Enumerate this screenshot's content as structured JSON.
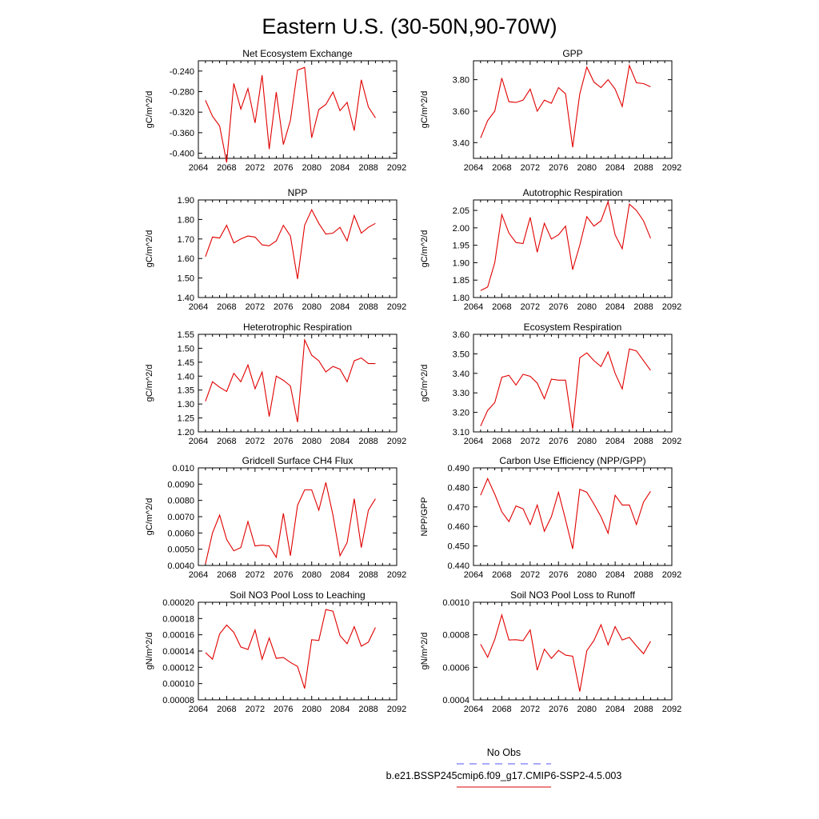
{
  "figure": {
    "title": "Eastern U.S. (30-50N,90-70W)"
  },
  "legend": {
    "entries": [
      {
        "label": "No Obs",
        "color": "#5555ff",
        "dashed": true
      },
      {
        "label": "b.e21.BSSP245cmip6.f09_g17.CMIP6-SSP2-4.5.003",
        "color": "#e00000",
        "dashed": false
      }
    ]
  },
  "chart_data": [
    {
      "type": "line",
      "title": "Net Ecosystem Exchange",
      "ylabel": "gC/m^2/d",
      "xlim": [
        2064,
        2092
      ],
      "xticks": [
        "2064",
        "2068",
        "2072",
        "2076",
        "2080",
        "2084",
        "2088",
        "2092"
      ],
      "ylim": [
        -0.41,
        -0.22
      ],
      "yticks": [
        "-0.240",
        "-0.280",
        "-0.320",
        "-0.360",
        "-0.400"
      ],
      "ytick_values": [
        -0.24,
        -0.28,
        -0.32,
        -0.36,
        -0.4
      ],
      "x": [
        2065,
        2066,
        2067,
        2068,
        2069,
        2070,
        2071,
        2072,
        2073,
        2074,
        2075,
        2076,
        2077,
        2078,
        2079,
        2080,
        2081,
        2082,
        2083,
        2084,
        2085,
        2086,
        2087,
        2088,
        2089
      ],
      "series": [
        {
          "color": "#e00000",
          "values": [
            -0.297,
            -0.328,
            -0.347,
            -0.418,
            -0.264,
            -0.314,
            -0.274,
            -0.341,
            -0.248,
            -0.392,
            -0.281,
            -0.383,
            -0.336,
            -0.238,
            -0.233,
            -0.37,
            -0.315,
            -0.305,
            -0.281,
            -0.317,
            -0.301,
            -0.356,
            -0.257,
            -0.31,
            -0.331
          ]
        }
      ]
    },
    {
      "type": "line",
      "title": "GPP",
      "ylabel": "gC/m^2/d",
      "xlim": [
        2064,
        2092
      ],
      "xticks": [
        "2064",
        "2068",
        "2072",
        "2076",
        "2080",
        "2084",
        "2088",
        "2092"
      ],
      "ylim": [
        3.3,
        3.92
      ],
      "yticks": [
        "3.80",
        "3.60",
        "3.40"
      ],
      "ytick_values": [
        3.8,
        3.6,
        3.4
      ],
      "x": [
        2065,
        2066,
        2067,
        2068,
        2069,
        2070,
        2071,
        2072,
        2073,
        2074,
        2075,
        2076,
        2077,
        2078,
        2079,
        2080,
        2081,
        2082,
        2083,
        2084,
        2085,
        2086,
        2087,
        2088,
        2089
      ],
      "series": [
        {
          "color": "#e00000",
          "values": [
            3.43,
            3.54,
            3.6,
            3.81,
            3.66,
            3.655,
            3.67,
            3.74,
            3.6,
            3.67,
            3.65,
            3.75,
            3.71,
            3.37,
            3.71,
            3.88,
            3.785,
            3.75,
            3.8,
            3.74,
            3.63,
            3.89,
            3.78,
            3.775,
            3.755
          ]
        }
      ]
    },
    {
      "type": "line",
      "title": "NPP",
      "ylabel": "gC/m^2/d",
      "xlim": [
        2064,
        2092
      ],
      "xticks": [
        "2064",
        "2068",
        "2072",
        "2076",
        "2080",
        "2084",
        "2088",
        "2092"
      ],
      "ylim": [
        1.4,
        1.9
      ],
      "yticks": [
        "1.90",
        "1.80",
        "1.70",
        "1.60",
        "1.50",
        "1.40"
      ],
      "ytick_values": [
        1.9,
        1.8,
        1.7,
        1.6,
        1.5,
        1.4
      ],
      "x": [
        2065,
        2066,
        2067,
        2068,
        2069,
        2070,
        2071,
        2072,
        2073,
        2074,
        2075,
        2076,
        2077,
        2078,
        2079,
        2080,
        2081,
        2082,
        2083,
        2084,
        2085,
        2086,
        2087,
        2088,
        2089
      ],
      "series": [
        {
          "color": "#e00000",
          "values": [
            1.61,
            1.71,
            1.705,
            1.77,
            1.68,
            1.7,
            1.715,
            1.71,
            1.67,
            1.665,
            1.69,
            1.77,
            1.715,
            1.495,
            1.77,
            1.85,
            1.78,
            1.725,
            1.73,
            1.76,
            1.69,
            1.82,
            1.73,
            1.76,
            1.78
          ]
        }
      ]
    },
    {
      "type": "line",
      "title": "Autotrophic Respiration",
      "ylabel": "gC/m^2/d",
      "xlim": [
        2064,
        2092
      ],
      "xticks": [
        "2064",
        "2068",
        "2072",
        "2076",
        "2080",
        "2084",
        "2088",
        "2092"
      ],
      "ylim": [
        1.8,
        2.08
      ],
      "yticks": [
        "2.05",
        "2.00",
        "1.95",
        "1.90",
        "1.85",
        "1.80"
      ],
      "ytick_values": [
        2.05,
        2.0,
        1.95,
        1.9,
        1.85,
        1.8
      ],
      "x": [
        2065,
        2066,
        2067,
        2068,
        2069,
        2070,
        2071,
        2072,
        2073,
        2074,
        2075,
        2076,
        2077,
        2078,
        2079,
        2080,
        2081,
        2082,
        2083,
        2084,
        2085,
        2086,
        2087,
        2088,
        2089
      ],
      "series": [
        {
          "color": "#e00000",
          "values": [
            1.82,
            1.83,
            1.9,
            2.038,
            1.985,
            1.958,
            1.955,
            2.03,
            1.93,
            2.013,
            1.968,
            1.98,
            2.005,
            1.88,
            1.95,
            2.032,
            2.005,
            2.02,
            2.075,
            1.98,
            1.94,
            2.068,
            2.05,
            2.02,
            1.97
          ]
        }
      ]
    },
    {
      "type": "line",
      "title": "Heterotrophic Respiration",
      "ylabel": "gC/m^2/d",
      "xlim": [
        2064,
        2092
      ],
      "xticks": [
        "2064",
        "2068",
        "2072",
        "2076",
        "2080",
        "2084",
        "2088",
        "2092"
      ],
      "ylim": [
        1.2,
        1.55
      ],
      "yticks": [
        "1.55",
        "1.50",
        "1.45",
        "1.40",
        "1.35",
        "1.30",
        "1.25",
        "1.20"
      ],
      "ytick_values": [
        1.55,
        1.5,
        1.45,
        1.4,
        1.35,
        1.3,
        1.25,
        1.2
      ],
      "x": [
        2065,
        2066,
        2067,
        2068,
        2069,
        2070,
        2071,
        2072,
        2073,
        2074,
        2075,
        2076,
        2077,
        2078,
        2079,
        2080,
        2081,
        2082,
        2083,
        2084,
        2085,
        2086,
        2087,
        2088,
        2089
      ],
      "series": [
        {
          "color": "#e00000",
          "values": [
            1.31,
            1.38,
            1.36,
            1.345,
            1.41,
            1.38,
            1.44,
            1.355,
            1.415,
            1.255,
            1.4,
            1.385,
            1.365,
            1.235,
            1.53,
            1.475,
            1.455,
            1.415,
            1.435,
            1.425,
            1.38,
            1.455,
            1.465,
            1.445,
            1.445
          ]
        }
      ]
    },
    {
      "type": "line",
      "title": "Ecosystem Respiration",
      "ylabel": "gC/m^2/d",
      "xlim": [
        2064,
        2092
      ],
      "xticks": [
        "2064",
        "2068",
        "2072",
        "2076",
        "2080",
        "2084",
        "2088",
        "2092"
      ],
      "ylim": [
        3.1,
        3.6
      ],
      "yticks": [
        "3.60",
        "3.50",
        "3.40",
        "3.30",
        "3.20",
        "3.10"
      ],
      "ytick_values": [
        3.6,
        3.5,
        3.4,
        3.3,
        3.2,
        3.1
      ],
      "x": [
        2065,
        2066,
        2067,
        2068,
        2069,
        2070,
        2071,
        2072,
        2073,
        2074,
        2075,
        2076,
        2077,
        2078,
        2079,
        2080,
        2081,
        2082,
        2083,
        2084,
        2085,
        2086,
        2087,
        2088,
        2089
      ],
      "series": [
        {
          "color": "#e00000",
          "values": [
            3.13,
            3.21,
            3.25,
            3.38,
            3.39,
            3.34,
            3.395,
            3.385,
            3.35,
            3.27,
            3.37,
            3.365,
            3.365,
            3.115,
            3.48,
            3.505,
            3.465,
            3.435,
            3.51,
            3.4,
            3.32,
            3.525,
            3.515,
            3.465,
            3.415
          ]
        }
      ]
    },
    {
      "type": "line",
      "title": "Gridcell Surface CH4 Flux",
      "ylabel": "gC/m^2/d",
      "xlim": [
        2064,
        2092
      ],
      "xticks": [
        "2064",
        "2068",
        "2072",
        "2076",
        "2080",
        "2084",
        "2088",
        "2092"
      ],
      "ylim": [
        0.004,
        0.01
      ],
      "yticks": [
        "0.010",
        "0.0090",
        "0.0080",
        "0.0070",
        "0.0060",
        "0.0050",
        "0.0040"
      ],
      "ytick_values": [
        0.01,
        0.009,
        0.008,
        0.007,
        0.006,
        0.005,
        0.004
      ],
      "x": [
        2065,
        2066,
        2067,
        2068,
        2069,
        2070,
        2071,
        2072,
        2073,
        2074,
        2075,
        2076,
        2077,
        2078,
        2079,
        2080,
        2081,
        2082,
        2083,
        2084,
        2085,
        2086,
        2087,
        2088,
        2089
      ],
      "series": [
        {
          "color": "#e00000",
          "values": [
            0.0041,
            0.006,
            0.0071,
            0.0056,
            0.0049,
            0.0051,
            0.0067,
            0.0052,
            0.00525,
            0.0052,
            0.0045,
            0.0072,
            0.0046,
            0.0077,
            0.00865,
            0.00865,
            0.0074,
            0.0091,
            0.0071,
            0.0046,
            0.0054,
            0.0081,
            0.0051,
            0.0074,
            0.0081
          ]
        }
      ]
    },
    {
      "type": "line",
      "title": "Carbon Use Efficiency (NPP/GPP)",
      "ylabel": "NPP/GPP",
      "xlim": [
        2064,
        2092
      ],
      "xticks": [
        "2064",
        "2068",
        "2072",
        "2076",
        "2080",
        "2084",
        "2088",
        "2092"
      ],
      "ylim": [
        0.44,
        0.49
      ],
      "yticks": [
        "0.490",
        "0.480",
        "0.470",
        "0.460",
        "0.450",
        "0.440"
      ],
      "ytick_values": [
        0.49,
        0.48,
        0.47,
        0.46,
        0.45,
        0.44
      ],
      "x": [
        2065,
        2066,
        2067,
        2068,
        2069,
        2070,
        2071,
        2072,
        2073,
        2074,
        2075,
        2076,
        2077,
        2078,
        2079,
        2080,
        2081,
        2082,
        2083,
        2084,
        2085,
        2086,
        2087,
        2088,
        2089
      ],
      "series": [
        {
          "color": "#e00000",
          "values": [
            0.476,
            0.4845,
            0.4765,
            0.4675,
            0.4625,
            0.4705,
            0.469,
            0.461,
            0.471,
            0.4575,
            0.465,
            0.4775,
            0.4635,
            0.4485,
            0.479,
            0.4775,
            0.4715,
            0.465,
            0.4565,
            0.476,
            0.471,
            0.471,
            0.461,
            0.4725,
            0.478
          ]
        }
      ]
    },
    {
      "type": "line",
      "title": "Soil NO3 Pool Loss to Leaching",
      "ylabel": "gN/m^2/d",
      "xlim": [
        2064,
        2092
      ],
      "xticks": [
        "2064",
        "2068",
        "2072",
        "2076",
        "2080",
        "2084",
        "2088",
        "2092"
      ],
      "ylim": [
        8e-05,
        0.0002
      ],
      "yticks": [
        "0.00020",
        "0.00018",
        "0.00016",
        "0.00014",
        "0.00012",
        "0.00010",
        "0.00008"
      ],
      "ytick_values": [
        0.0002,
        0.00018,
        0.00016,
        0.00014,
        0.00012,
        0.0001,
        8e-05
      ],
      "x": [
        2065,
        2066,
        2067,
        2068,
        2069,
        2070,
        2071,
        2072,
        2073,
        2074,
        2075,
        2076,
        2077,
        2078,
        2079,
        2080,
        2081,
        2082,
        2083,
        2084,
        2085,
        2086,
        2087,
        2088,
        2089
      ],
      "series": [
        {
          "color": "#e00000",
          "values": [
            0.000138,
            0.00013,
            0.000161,
            0.000172,
            0.000163,
            0.000145,
            0.000142,
            0.000166,
            0.00013,
            0.000156,
            0.000131,
            0.000132,
            0.000126,
            0.000121,
            9.4e-05,
            0.000154,
            0.000153,
            0.000191,
            0.000189,
            0.000159,
            0.000149,
            0.00017,
            0.000146,
            0.000151,
            0.000169
          ]
        }
      ]
    },
    {
      "type": "line",
      "title": "Soil NO3 Pool Loss to Runoff",
      "ylabel": "gN/m^2/d",
      "xlim": [
        2064,
        2092
      ],
      "xticks": [
        "2064",
        "2068",
        "2072",
        "2076",
        "2080",
        "2084",
        "2088",
        "2092"
      ],
      "ylim": [
        0.0004,
        0.001
      ],
      "yticks": [
        "0.0010",
        "0.0008",
        "0.0006",
        "0.0004"
      ],
      "ytick_values": [
        0.001,
        0.0008,
        0.0006,
        0.0004
      ],
      "x": [
        2065,
        2066,
        2067,
        2068,
        2069,
        2070,
        2071,
        2072,
        2073,
        2074,
        2075,
        2076,
        2077,
        2078,
        2079,
        2080,
        2081,
        2082,
        2083,
        2084,
        2085,
        2086,
        2087,
        2088,
        2089
      ],
      "series": [
        {
          "color": "#e00000",
          "values": [
            0.000742,
            0.000662,
            0.000772,
            0.000922,
            0.000768,
            0.00077,
            0.000764,
            0.00083,
            0.000582,
            0.000712,
            0.000655,
            0.000704,
            0.000675,
            0.000668,
            0.000451,
            0.000702,
            0.000765,
            0.000862,
            0.000738,
            0.00085,
            0.000768,
            0.000784,
            0.000732,
            0.000684,
            0.00076
          ]
        }
      ]
    }
  ]
}
